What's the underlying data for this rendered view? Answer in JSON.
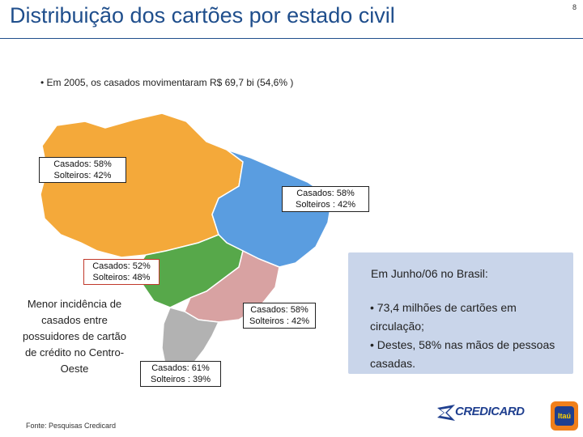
{
  "title": "Distribuição dos cartões por estado civil",
  "page_number": "8",
  "top_bullet": "• Em 2005, os casados movimentaram R$ 69,7 bi (54,6% )",
  "regions": {
    "norte": {
      "line1": "Casados: 58%",
      "line2": "Solteiros: 42%",
      "color": "#f4a93a"
    },
    "nordeste": {
      "line1": "Casados: 58%",
      "line2": "Solteiros : 42%",
      "color": "#5a9de0"
    },
    "centro_oeste": {
      "line1": "Casados: 52%",
      "line2": "Solteiros: 48%",
      "color": "#57a84a"
    },
    "sudeste": {
      "line1": "Casados: 58%",
      "line2": "Solteiros : 42%",
      "color": "#d8a2a2"
    },
    "sul": {
      "line1": "Casados: 61%",
      "line2": "Solteiros : 39%",
      "color": "#b2b2b2"
    }
  },
  "left_note": "Menor incidência de casados entre possuidores de cartão de crédito no Centro-Oeste",
  "info_box": {
    "heading": "Em Junho/06 no Brasil:",
    "bullet1": "• 73,4 milhões de cartões em circulação;",
    "bullet2": "• Destes, 58% nas mãos de pessoas casadas."
  },
  "footer_source": "Fonte: Pesquisas Credicard",
  "brand": "CREDICARD",
  "itau_logo": "Itaú",
  "colors": {
    "title": "#1f4e8c",
    "info_box": "#c9d5ea",
    "itau_orange": "#f07f1a",
    "itau_blue": "#1f3f8f"
  }
}
